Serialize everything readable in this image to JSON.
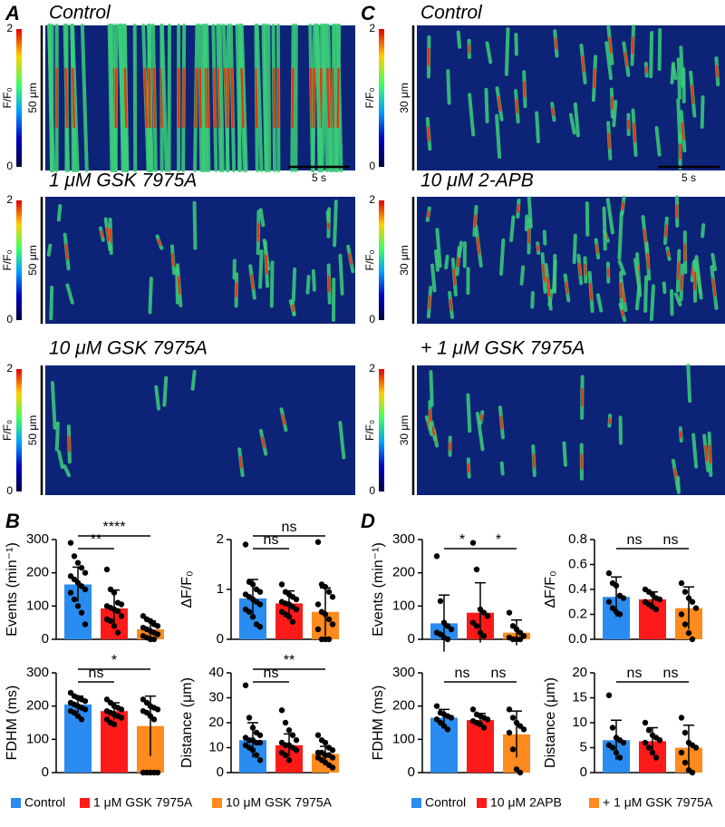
{
  "panel_labels": [
    "A",
    "C",
    "B",
    "D"
  ],
  "kymographs": {
    "colorbar": {
      "label": "F/F₀",
      "ticks": [
        0,
        2
      ]
    },
    "A": {
      "titles": [
        "Control",
        "1 μM GSK 7975A",
        "10 μM GSK 7975A"
      ],
      "scale_y": "50 μm",
      "scale_x": "5 s"
    },
    "C": {
      "titles": [
        "Control",
        "10 μM 2-APB",
        "+ 1 μM GSK 7975A"
      ],
      "scale_y": "30 μm",
      "scale_x": "5 s"
    }
  },
  "legends": {
    "B": [
      {
        "name": "Control",
        "color": "#2a8cf0"
      },
      {
        "name": "1 μM GSK 7975A",
        "color": "#ff1a1a"
      },
      {
        "name": "10 μM GSK 7975A",
        "color": "#ff8a1e"
      }
    ],
    "D": [
      {
        "name": "Control",
        "color": "#2a8cf0"
      },
      {
        "name": "10 μM 2APB",
        "color": "#ff1a1a"
      },
      {
        "name": "+ 1 μM GSK 7975A",
        "color": "#ff8a1e"
      }
    ]
  },
  "chart_data": [
    {
      "type": "bar",
      "legend": "B",
      "ylabel": "Events (min⁻¹)",
      "ylim": [
        0,
        300
      ],
      "yticks": [
        0,
        100,
        200,
        300
      ],
      "values": [
        165,
        93,
        30
      ],
      "errors": [
        52,
        55,
        25
      ],
      "points": [
        [
          290,
          250,
          230,
          215,
          200,
          190,
          180,
          170,
          160,
          150,
          140,
          120,
          100,
          80,
          45
        ],
        [
          210,
          150,
          140,
          110,
          105,
          100,
          95,
          90,
          85,
          70,
          60,
          55,
          40,
          20
        ],
        [
          70,
          60,
          55,
          45,
          40,
          35,
          30,
          25,
          20,
          15,
          10,
          5,
          0,
          0
        ]
      ],
      "comparisons": [
        {
          "pair": [
            0,
            1
          ],
          "label": "**"
        },
        {
          "pair": [
            0,
            2
          ],
          "label": "****"
        }
      ]
    },
    {
      "type": "bar",
      "legend": "B",
      "ylabel": "ΔF/F₀",
      "ylim": [
        0,
        2
      ],
      "yticks": [
        0,
        1,
        2
      ],
      "values": [
        0.82,
        0.72,
        0.55
      ],
      "errors": [
        0.38,
        0.25,
        0.48
      ],
      "points": [
        [
          1.9,
          1.15,
          1.1,
          1.0,
          0.95,
          0.9,
          0.85,
          0.8,
          0.75,
          0.7,
          0.6,
          0.55,
          0.45,
          0.3,
          0.25
        ],
        [
          1.1,
          0.95,
          0.9,
          0.85,
          0.8,
          0.75,
          0.72,
          0.7,
          0.65,
          0.6,
          0.55,
          0.5,
          0.45,
          0.35
        ],
        [
          1.95,
          1.1,
          1.05,
          0.95,
          0.85,
          0.7,
          0.55,
          0.5,
          0.4,
          0.3,
          0.2,
          0,
          0,
          0
        ]
      ],
      "comparisons": [
        {
          "pair": [
            0,
            1
          ],
          "label": "ns"
        },
        {
          "pair": [
            0,
            2
          ],
          "label": "ns"
        }
      ]
    },
    {
      "type": "bar",
      "legend": "B",
      "ylabel": "FDHM (ms)",
      "ylim": [
        0,
        300
      ],
      "yticks": [
        0,
        100,
        200,
        300
      ],
      "values": [
        205,
        185,
        140
      ],
      "errors": [
        25,
        25,
        90
      ],
      "points": [
        [
          240,
          230,
          225,
          220,
          215,
          210,
          205,
          200,
          195,
          190,
          185,
          180,
          170,
          160
        ],
        [
          220,
          210,
          200,
          195,
          190,
          185,
          180,
          175,
          170,
          165,
          160,
          150,
          145
        ],
        [
          220,
          210,
          200,
          195,
          190,
          185,
          180,
          170,
          160,
          0,
          0,
          0,
          0,
          0
        ]
      ],
      "comparisons": [
        {
          "pair": [
            0,
            1
          ],
          "label": "ns"
        },
        {
          "pair": [
            0,
            2
          ],
          "label": "*"
        }
      ]
    },
    {
      "type": "bar",
      "legend": "B",
      "ylabel": "Distance (μm)",
      "ylim": [
        0,
        40
      ],
      "yticks": [
        0,
        10,
        20,
        30,
        40
      ],
      "values": [
        13,
        11,
        7.5
      ],
      "errors": [
        7,
        4.5,
        3
      ],
      "points": [
        [
          35,
          22,
          18,
          16,
          15,
          14,
          13,
          13,
          12,
          12,
          11,
          10,
          9,
          7,
          5
        ],
        [
          25,
          20,
          17,
          15,
          13,
          12,
          11,
          11,
          10,
          9,
          8,
          7,
          5
        ],
        [
          15,
          13,
          12,
          10,
          9,
          8,
          8,
          7,
          7,
          6,
          6,
          5,
          4,
          3,
          2
        ]
      ],
      "comparisons": [
        {
          "pair": [
            0,
            1
          ],
          "label": "ns"
        },
        {
          "pair": [
            0,
            2
          ],
          "label": "**"
        }
      ]
    },
    {
      "type": "bar",
      "legend": "D",
      "ylabel": "Events (min⁻¹)",
      "ylim": [
        0,
        300
      ],
      "yticks": [
        0,
        100,
        200,
        300
      ],
      "values": [
        48,
        80,
        20
      ],
      "errors": [
        85,
        90,
        38
      ],
      "points": [
        [
          250,
          115,
          50,
          40,
          30,
          20,
          15,
          5,
          0
        ],
        [
          290,
          210,
          90,
          80,
          70,
          50,
          40,
          20,
          10
        ],
        [
          80,
          40,
          30,
          20,
          10,
          5,
          0,
          0,
          0
        ]
      ],
      "comparisons": [
        {
          "pair": [
            0,
            1
          ],
          "label": "*"
        },
        {
          "pair": [
            1,
            2
          ],
          "label": "*"
        }
      ]
    },
    {
      "type": "bar",
      "legend": "D",
      "ylabel": "ΔF/F₀",
      "ylim": [
        0,
        0.8
      ],
      "yticks": [
        {
          "value": 0,
          "label": "0.0"
        },
        0.2,
        0.4,
        0.6,
        0.8
      ],
      "values": [
        0.34,
        0.32,
        0.25
      ],
      "errors": [
        0.16,
        0.06,
        0.17
      ],
      "points": [
        [
          0.53,
          0.45,
          0.43,
          0.35,
          0.33,
          0.3,
          0.25,
          0.22,
          0.2
        ],
        [
          0.4,
          0.38,
          0.36,
          0.33,
          0.32,
          0.3,
          0.28,
          0.26,
          0.24
        ],
        [
          0.45,
          0.38,
          0.33,
          0.3,
          0.25,
          0.2,
          0.12,
          0.05,
          0
        ]
      ],
      "comparisons": [
        {
          "pair": [
            0,
            1
          ],
          "label": "ns"
        },
        {
          "pair": [
            1,
            2
          ],
          "label": "ns"
        }
      ]
    },
    {
      "type": "bar",
      "legend": "D",
      "ylabel": "FDHM (ms)",
      "ylim": [
        0,
        300
      ],
      "yticks": [
        0,
        100,
        200,
        300
      ],
      "values": [
        165,
        158,
        115
      ],
      "errors": [
        25,
        20,
        70
      ],
      "points": [
        [
          200,
          180,
          175,
          170,
          165,
          160,
          150,
          140,
          130
        ],
        [
          190,
          175,
          170,
          165,
          160,
          155,
          150,
          145,
          135
        ],
        [
          190,
          165,
          150,
          140,
          130,
          120,
          70,
          10,
          0
        ]
      ],
      "comparisons": [
        {
          "pair": [
            0,
            1
          ],
          "label": "ns"
        },
        {
          "pair": [
            1,
            2
          ],
          "label": "ns"
        }
      ]
    },
    {
      "type": "bar",
      "legend": "D",
      "ylabel": "Distance (μm)",
      "ylim": [
        0,
        20
      ],
      "yticks": [
        0,
        5,
        10,
        15,
        20
      ],
      "values": [
        6.5,
        6.3,
        5
      ],
      "errors": [
        4,
        2.7,
        4.5
      ],
      "points": [
        [
          15.5,
          9,
          7,
          6.5,
          6,
          5.5,
          5,
          4,
          3
        ],
        [
          10,
          8.5,
          7.5,
          7,
          6.5,
          6,
          5,
          4,
          3
        ],
        [
          11,
          8,
          6,
          5.5,
          5,
          4,
          2,
          0.5,
          0
        ]
      ],
      "comparisons": [
        {
          "pair": [
            0,
            1
          ],
          "label": "ns"
        },
        {
          "pair": [
            1,
            2
          ],
          "label": "ns"
        }
      ]
    }
  ]
}
